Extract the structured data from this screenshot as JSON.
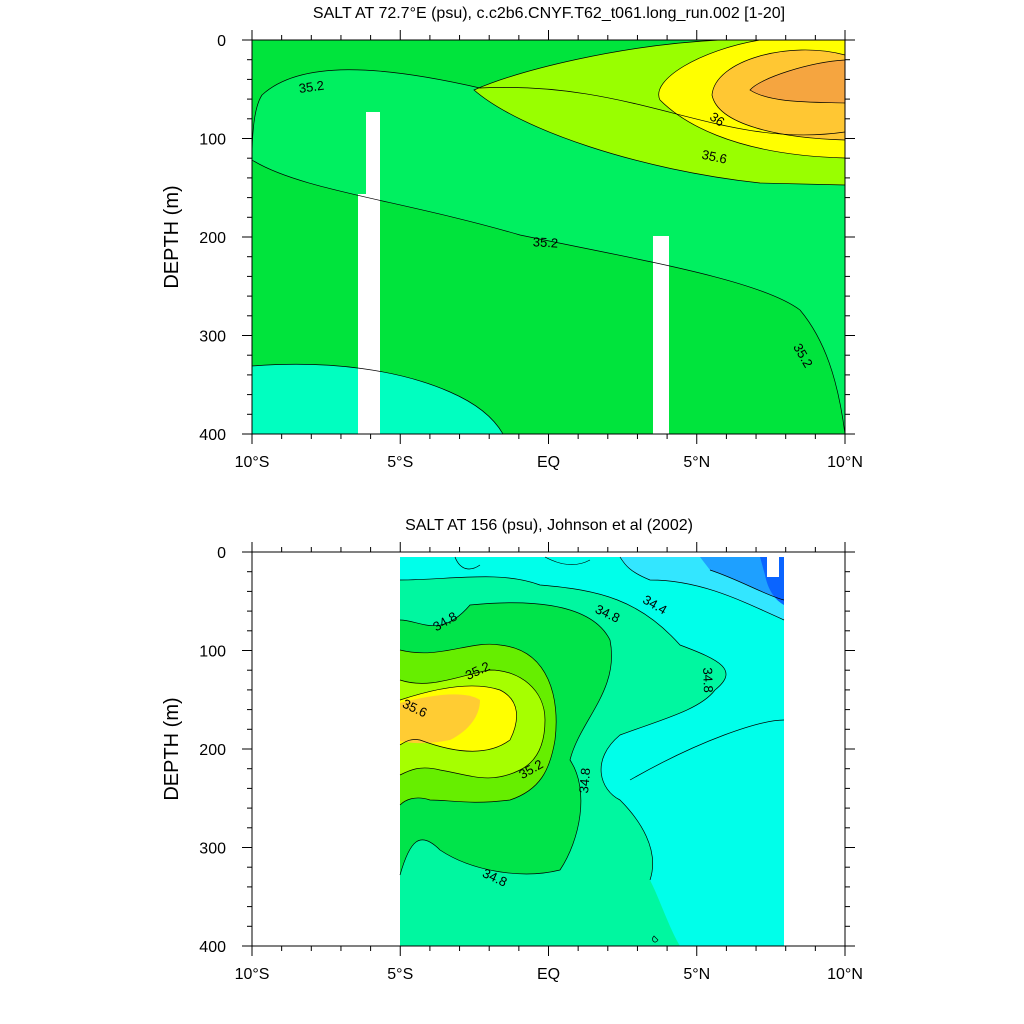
{
  "colors": {
    "c_lt_34_4": "#0a64ff",
    "c_34_4": "#1ea0ff",
    "c_34_6": "#33e6ff",
    "c_34_8": "#00ffea",
    "c_35_0": "#00f7a0",
    "c_35_2": "#00e44a",
    "c_35_4": "#66ee00",
    "c_35_6": "#a6ff00",
    "c_35_8": "#ffff00",
    "c_36_0": "#ffcc33",
    "c_36_2": "#ffaa33",
    "mask": "#ffffff",
    "line": "#000000"
  },
  "chart_data": [
    {
      "type": "contour",
      "title": "SALT AT  72.7°E (psu), c.c2b6.CNYF.T62_t061.long_run.002 [1-20]",
      "xlabel": "",
      "ylabel": "DEPTH (m)",
      "x_unit": "degrees latitude",
      "xlim": [
        -10,
        10
      ],
      "ylim": [
        400,
        0
      ],
      "x_ticks": [
        -10,
        -5,
        0,
        5,
        10
      ],
      "x_tick_labels": [
        "10°S",
        "5°S",
        "EQ",
        "5°N",
        "10°N"
      ],
      "y_ticks": [
        0,
        100,
        200,
        300,
        400
      ],
      "y_tick_labels": [
        "0",
        "100",
        "200",
        "300",
        "400"
      ],
      "contour_labels": [
        {
          "text": "35.2",
          "lat": -8,
          "depth": 47,
          "angle": -8
        },
        {
          "text": "36",
          "lat": 5.7,
          "depth": 80,
          "angle": 35
        },
        {
          "text": "35.6",
          "lat": 5.6,
          "depth": 118,
          "angle": 12
        },
        {
          "text": "35.2",
          "lat": -0.1,
          "depth": 205,
          "angle": 3
        },
        {
          "text": "35.2",
          "lat": 8.6,
          "depth": 320,
          "angle": 60
        }
      ]
    },
    {
      "type": "contour",
      "title": "SALT AT 156 (psu), Johnson et al (2002)",
      "xlabel": "",
      "ylabel": "DEPTH (m)",
      "x_unit": "degrees latitude",
      "xlim": [
        -10,
        10
      ],
      "ylim": [
        400,
        0
      ],
      "data_lat_range": [
        -5,
        8
      ],
      "data_depth_range": [
        5,
        400
      ],
      "x_ticks": [
        -10,
        -5,
        0,
        5,
        10
      ],
      "x_tick_labels": [
        "10°S",
        "5°S",
        "EQ",
        "5°N",
        "10°N"
      ],
      "y_ticks": [
        0,
        100,
        200,
        300,
        400
      ],
      "y_tick_labels": [
        "0",
        "100",
        "200",
        "300",
        "400"
      ],
      "contour_labels": [
        {
          "text": "34.8",
          "lat": -3.5,
          "depth": 70,
          "angle": -30
        },
        {
          "text": "34.8",
          "lat": 2.0,
          "depth": 62,
          "angle": 25
        },
        {
          "text": "34.4",
          "lat": 3.6,
          "depth": 53,
          "angle": 30
        },
        {
          "text": "35.2",
          "lat": -2.4,
          "depth": 120,
          "angle": -25
        },
        {
          "text": "34.8",
          "lat": 5.4,
          "depth": 130,
          "angle": 88
        },
        {
          "text": "35.6",
          "lat": -4.5,
          "depth": 158,
          "angle": 25
        },
        {
          "text": "35.2",
          "lat": -0.6,
          "depth": 220,
          "angle": -30
        },
        {
          "text": "34.8",
          "lat": 1.2,
          "depth": 232,
          "angle": -85
        },
        {
          "text": "34.8",
          "lat": -1.8,
          "depth": 330,
          "angle": 25
        }
      ]
    }
  ]
}
